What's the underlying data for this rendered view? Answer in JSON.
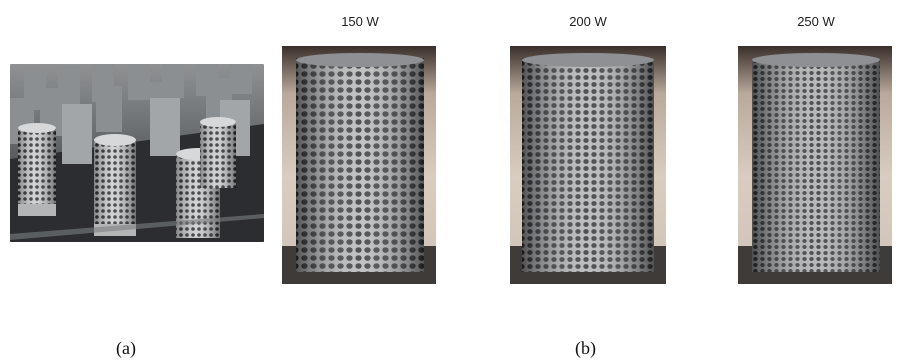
{
  "panel_a": {
    "caption": "(a)"
  },
  "panel_b": {
    "caption": "(b)",
    "samples": [
      {
        "power_label": "150 W"
      },
      {
        "power_label": "200 W"
      },
      {
        "power_label": "250 W"
      }
    ]
  },
  "colors": {
    "metal_gray": "#6f7275",
    "backdrop_beige": "#d9cdc0"
  }
}
